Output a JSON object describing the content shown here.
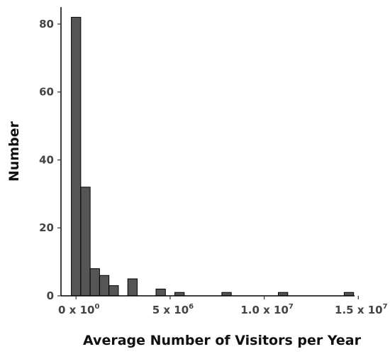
{
  "chart_data": {
    "type": "bar",
    "subtype": "histogram",
    "xlabel": "Average Number of Visitors per Year",
    "ylabel": "Number",
    "ylim": [
      0,
      85
    ],
    "xlim": [
      -0.8,
      14.8
    ],
    "x_units": "millions of visitors",
    "bin_width": 0.5,
    "bins": [
      {
        "start": -0.25,
        "end": 0.25,
        "count": 82
      },
      {
        "start": 0.25,
        "end": 0.75,
        "count": 32
      },
      {
        "start": 0.75,
        "end": 1.25,
        "count": 8
      },
      {
        "start": 1.25,
        "end": 1.75,
        "count": 6
      },
      {
        "start": 1.75,
        "end": 2.25,
        "count": 3
      },
      {
        "start": 2.25,
        "end": 2.75,
        "count": 0
      },
      {
        "start": 2.75,
        "end": 3.25,
        "count": 5
      },
      {
        "start": 3.25,
        "end": 3.75,
        "count": 0
      },
      {
        "start": 3.75,
        "end": 4.25,
        "count": 0
      },
      {
        "start": 4.25,
        "end": 4.75,
        "count": 2
      },
      {
        "start": 4.75,
        "end": 5.25,
        "count": 0
      },
      {
        "start": 5.25,
        "end": 5.75,
        "count": 1
      },
      {
        "start": 5.75,
        "end": 6.25,
        "count": 0
      },
      {
        "start": 6.25,
        "end": 6.75,
        "count": 0
      },
      {
        "start": 6.75,
        "end": 7.25,
        "count": 0
      },
      {
        "start": 7.25,
        "end": 7.75,
        "count": 0
      },
      {
        "start": 7.75,
        "end": 8.25,
        "count": 1
      },
      {
        "start": 8.25,
        "end": 8.75,
        "count": 0
      },
      {
        "start": 8.75,
        "end": 9.25,
        "count": 0
      },
      {
        "start": 9.25,
        "end": 9.75,
        "count": 0
      },
      {
        "start": 9.75,
        "end": 10.25,
        "count": 0
      },
      {
        "start": 10.25,
        "end": 10.75,
        "count": 0
      },
      {
        "start": 10.75,
        "end": 11.25,
        "count": 1
      },
      {
        "start": 11.25,
        "end": 11.75,
        "count": 0
      },
      {
        "start": 11.75,
        "end": 12.25,
        "count": 0
      },
      {
        "start": 12.25,
        "end": 12.75,
        "count": 0
      },
      {
        "start": 12.75,
        "end": 13.25,
        "count": 0
      },
      {
        "start": 13.25,
        "end": 13.75,
        "count": 0
      },
      {
        "start": 13.75,
        "end": 14.25,
        "count": 0
      },
      {
        "start": 14.25,
        "end": 14.75,
        "count": 1
      }
    ],
    "x_ticks": [
      {
        "value": 0,
        "mantissa": "0 x 10",
        "exponent": "0"
      },
      {
        "value": 5,
        "mantissa": "5 x 10",
        "exponent": "6"
      },
      {
        "value": 10,
        "mantissa": "1.0 x 10",
        "exponent": "7"
      },
      {
        "value": 15,
        "mantissa": "1.5 x 10",
        "exponent": "7"
      }
    ],
    "y_ticks": [
      0,
      20,
      40,
      60,
      80
    ],
    "bar_fill": "#555555",
    "bar_stroke": "#000000",
    "grid": false
  }
}
